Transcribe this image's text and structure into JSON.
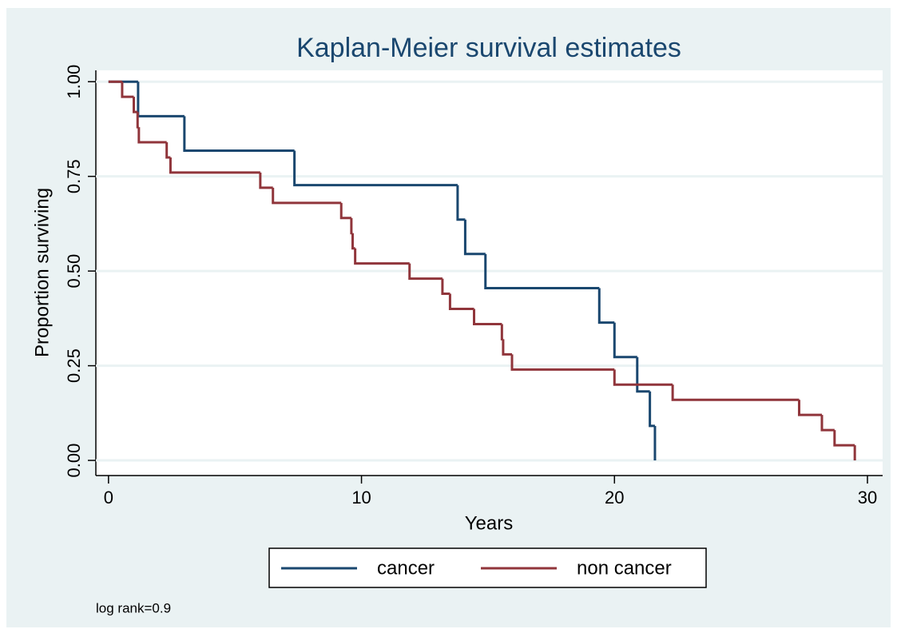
{
  "chart_data": {
    "type": "step",
    "title": "Kaplan-Meier survival estimates",
    "xlabel": "Years",
    "ylabel": "Proportion surviving",
    "note": "log rank=0.9",
    "xlim": [
      -0.5,
      30.6
    ],
    "ylim": [
      -0.04,
      1.03
    ],
    "xticks": [
      0,
      10,
      20,
      30
    ],
    "yticks": [
      {
        "value": 0,
        "label": "0.00"
      },
      0.25,
      {
        "value": 0.5,
        "label": "0.50"
      },
      0.75,
      {
        "value": 1,
        "label": "1.00"
      }
    ],
    "grid": true,
    "series": [
      {
        "name": "cancer",
        "color": "#1a476f",
        "x": [
          0,
          1.17,
          3.0,
          7.35,
          13.8,
          14.1,
          14.9,
          19.4,
          20.0,
          20.9,
          21.4,
          21.6
        ],
        "values": [
          1,
          0.909,
          0.818,
          0.727,
          0.636,
          0.545,
          0.455,
          0.364,
          0.273,
          0.182,
          0.091,
          0
        ]
      },
      {
        "name": "non cancer",
        "color": "#90353b",
        "x": [
          0,
          0.54,
          1.0,
          1.15,
          1.2,
          2.3,
          2.45,
          6.0,
          6.5,
          9.2,
          9.6,
          9.65,
          9.75,
          11.9,
          13.2,
          13.5,
          14.45,
          15.55,
          15.6,
          15.95,
          20.0,
          22.3,
          27.3,
          28.2,
          28.7,
          29.5
        ],
        "values": [
          1,
          0.96,
          0.92,
          0.88,
          0.84,
          0.8,
          0.76,
          0.72,
          0.68,
          0.64,
          0.6,
          0.56,
          0.52,
          0.48,
          0.44,
          0.4,
          0.36,
          0.32,
          0.28,
          0.24,
          0.2,
          0.16,
          0.12,
          0.08,
          0.04,
          0
        ]
      }
    ]
  }
}
